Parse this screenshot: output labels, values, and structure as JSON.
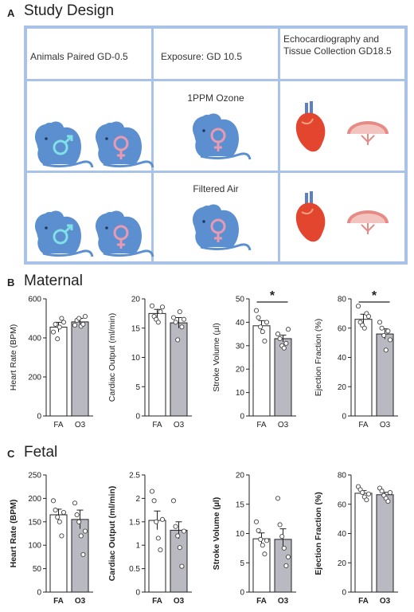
{
  "panels": {
    "a": {
      "letter": "A",
      "title": "Study Design"
    },
    "b": {
      "letter": "B",
      "title": "Maternal"
    },
    "c": {
      "letter": "C",
      "title": "Fetal"
    }
  },
  "design": {
    "headers": [
      "Animals Paired GD-0.5",
      "Exposure: GD 10.5",
      "Echocardiography and Tissue Collection GD18.5"
    ],
    "row_labels": [
      "1PPM Ozone",
      "Filtered Air"
    ],
    "colors": {
      "grid": "#a9c2e8",
      "mouse": "#5b8fd0",
      "male_symbol": "#7fe0e6",
      "female_symbol": "#e89ab3",
      "heart": "#e2462f",
      "placenta": "#e58a84"
    },
    "icons": [
      "mouse-icon",
      "male-symbol-icon",
      "female-symbol-icon",
      "heart-icon",
      "placenta-icon"
    ]
  },
  "colors": {
    "fa_bar": "#ffffff",
    "o3_bar": "#b9b9c2",
    "axis": "#222222"
  },
  "chart_data": [
    {
      "id": "maternal-hr",
      "type": "bar",
      "categories": [
        "FA",
        "O3"
      ],
      "ylabel": "Heart Rate (BPM)",
      "ylim": [
        0,
        600
      ],
      "yticks": [
        0,
        200,
        400,
        600
      ],
      "values": [
        455,
        482
      ],
      "errors": [
        25,
        18
      ],
      "points": [
        [
          430,
          470,
          395,
          455,
          500,
          480
        ],
        [
          465,
          490,
          500,
          460,
          470,
          510
        ]
      ]
    },
    {
      "id": "maternal-co",
      "type": "bar",
      "categories": [
        "FA",
        "O3"
      ],
      "ylabel": "Cardiac Output (ml/min)",
      "ylim": [
        0,
        20
      ],
      "yticks": [
        0,
        5,
        10,
        15,
        20
      ],
      "values": [
        17.5,
        15.9
      ],
      "errors": [
        0.7,
        0.9
      ],
      "points": [
        [
          18.8,
          17.0,
          16.5,
          16.0,
          17.8,
          18.6
        ],
        [
          16.8,
          16.0,
          13.0,
          17.8,
          15.2,
          16.5
        ]
      ]
    },
    {
      "id": "maternal-sv",
      "type": "bar",
      "categories": [
        "FA",
        "O3"
      ],
      "ylabel": "Stroke Volume (µl)",
      "ylim": [
        0,
        50
      ],
      "yticks": [
        0,
        10,
        20,
        30,
        40,
        50
      ],
      "values": [
        38.5,
        33
      ],
      "errors": [
        2.2,
        1.5
      ],
      "points": [
        [
          45,
          42,
          38,
          36,
          32,
          40
        ],
        [
          35,
          33,
          30,
          29,
          31,
          37
        ]
      ],
      "significance": "*"
    },
    {
      "id": "maternal-ef",
      "type": "bar",
      "categories": [
        "FA",
        "O3"
      ],
      "ylabel": "Ejection Fraction (%)",
      "ylim": [
        0,
        80
      ],
      "yticks": [
        0,
        20,
        40,
        60,
        80
      ],
      "values": [
        66,
        56
      ],
      "errors": [
        3.5,
        3.5
      ],
      "points": [
        [
          75,
          64,
          62,
          60,
          70,
          68
        ],
        [
          64,
          60,
          55,
          45,
          58,
          52
        ]
      ],
      "significance": "*"
    },
    {
      "id": "fetal-hr",
      "type": "bar",
      "categories": [
        "FA",
        "O3"
      ],
      "ylabel": "Heart Rate (BPM)",
      "ylim": [
        0,
        250
      ],
      "yticks": [
        0,
        50,
        100,
        150,
        200,
        250
      ],
      "values": [
        165,
        155
      ],
      "errors": [
        12,
        20
      ],
      "points": [
        [
          195,
          175,
          160,
          150,
          120,
          170
        ],
        [
          190,
          165,
          150,
          120,
          80,
          130
        ]
      ]
    },
    {
      "id": "fetal-co",
      "type": "bar",
      "categories": [
        "FA",
        "O3"
      ],
      "ylabel": "Cardiac Output (ml/min)",
      "ylim": [
        0,
        2.5
      ],
      "yticks": [
        0,
        0.5,
        1.0,
        1.5,
        2.0,
        2.5
      ],
      "values": [
        1.53,
        1.32
      ],
      "errors": [
        0.2,
        0.18
      ],
      "points": [
        [
          2.15,
          1.95,
          1.5,
          1.15,
          0.9,
          1.55
        ],
        [
          1.95,
          1.4,
          1.2,
          0.95,
          0.55,
          1.3
        ]
      ]
    },
    {
      "id": "fetal-sv",
      "type": "bar",
      "categories": [
        "FA",
        "O3"
      ],
      "ylabel": "Stroke Volume (µl)",
      "ylim": [
        0,
        20
      ],
      "yticks": [
        0,
        5,
        10,
        15,
        20
      ],
      "values": [
        9.1,
        9.0
      ],
      "errors": [
        1.0,
        1.8
      ],
      "points": [
        [
          12.0,
          10.5,
          9.0,
          8.0,
          6.5,
          8.8
        ],
        [
          16.0,
          11.5,
          9.5,
          7.5,
          4.5,
          6.0
        ]
      ]
    },
    {
      "id": "fetal-ef",
      "type": "bar",
      "categories": [
        "FA",
        "O3"
      ],
      "ylabel": "Ejection Fraction (%)",
      "ylim": [
        0,
        80
      ],
      "yticks": [
        0,
        20,
        40,
        60,
        80
      ],
      "values": [
        67.5,
        66.5
      ],
      "errors": [
        1.8,
        1.6
      ],
      "points": [
        [
          72,
          70,
          68,
          65,
          63,
          67
        ],
        [
          71,
          69,
          66,
          64,
          62,
          68
        ]
      ]
    }
  ]
}
